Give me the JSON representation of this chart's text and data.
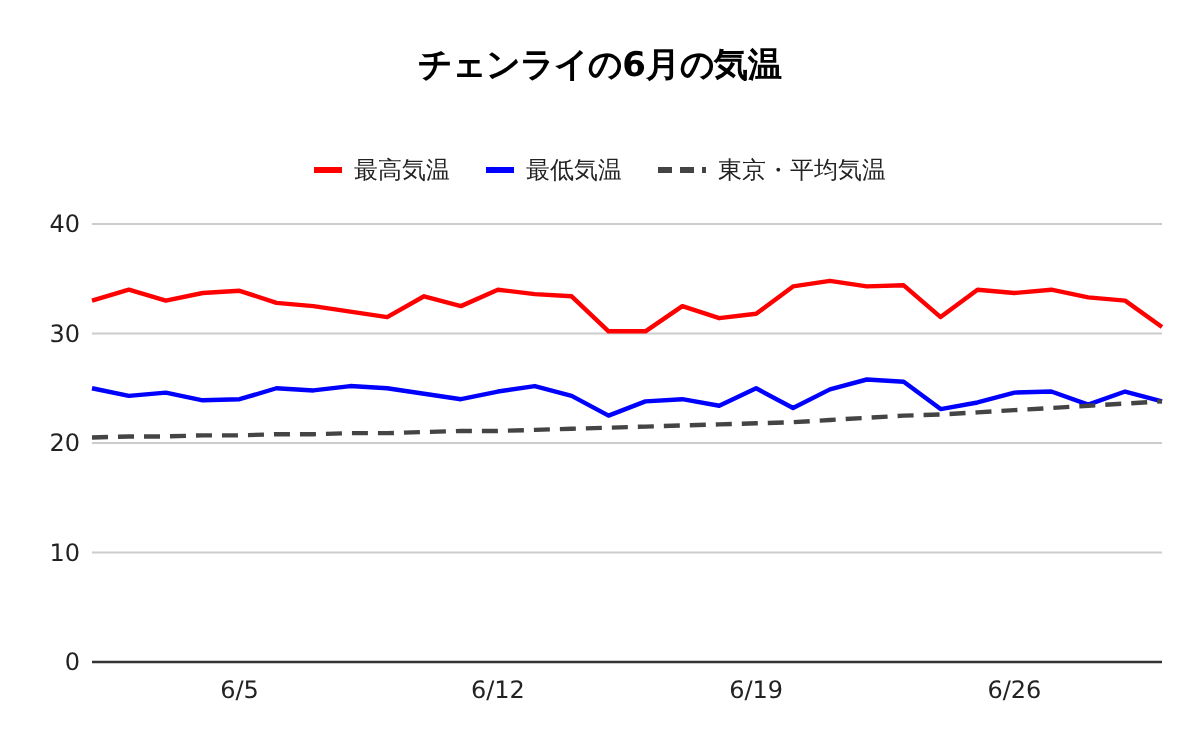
{
  "chart_data": {
    "type": "line",
    "title": "チェンライの6月の気温",
    "categories": [
      null,
      null,
      null,
      null,
      "6/5",
      null,
      null,
      null,
      null,
      null,
      null,
      "6/12",
      null,
      null,
      null,
      null,
      null,
      null,
      "6/19",
      null,
      null,
      null,
      null,
      null,
      null,
      "6/26",
      null,
      null,
      null,
      null
    ],
    "series": [
      {
        "name": "最高気温",
        "color": "#ff0000",
        "values": [
          33.0,
          34.0,
          33.0,
          33.7,
          33.9,
          32.8,
          32.5,
          32.0,
          31.5,
          33.4,
          32.5,
          34.0,
          33.6,
          33.4,
          30.2,
          30.2,
          32.5,
          31.4,
          31.8,
          34.3,
          34.8,
          34.3,
          34.4,
          31.5,
          34.0,
          33.7,
          34.0,
          33.3,
          33.0,
          30.6
        ]
      },
      {
        "name": "最低気温",
        "color": "#0000ff",
        "values": [
          25.0,
          24.3,
          24.6,
          23.9,
          24.0,
          25.0,
          24.8,
          25.2,
          25.0,
          24.5,
          24.0,
          24.7,
          25.2,
          24.3,
          22.5,
          23.8,
          24.0,
          23.4,
          25.0,
          23.2,
          24.9,
          25.8,
          25.6,
          23.1,
          23.7,
          24.6,
          24.7,
          23.5,
          24.7,
          23.8
        ]
      },
      {
        "name": "東京・平均気温",
        "color": "#444444",
        "line_style": "dashed",
        "values": [
          20.5,
          20.6,
          20.6,
          20.7,
          20.7,
          20.8,
          20.8,
          20.9,
          20.9,
          21.0,
          21.1,
          21.1,
          21.2,
          21.3,
          21.4,
          21.5,
          21.6,
          21.7,
          21.8,
          21.9,
          22.1,
          22.3,
          22.5,
          22.6,
          22.8,
          23.0,
          23.2,
          23.4,
          23.6,
          23.8
        ]
      }
    ],
    "ylim": [
      0,
      40
    ],
    "yticks": [
      0,
      10,
      20,
      30,
      40
    ],
    "grid": "y",
    "legend": "top",
    "line_style": "solid",
    "marker": "none"
  }
}
